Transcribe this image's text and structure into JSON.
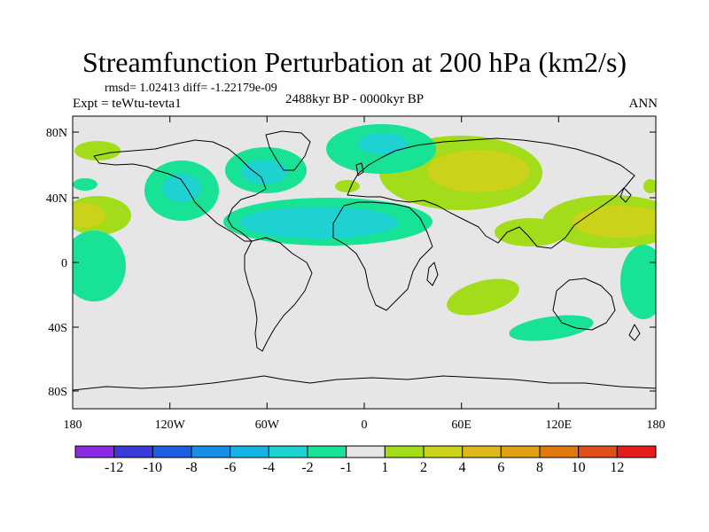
{
  "title": "Streamfunction Perturbation at 200 hPa (km2/s)",
  "stats": "rmsd= 1.02413  diff= -1.22179e-09",
  "experiment": "Expt = teWtu-tevta1",
  "period": "2488kyr BP - 0000kyr BP",
  "season": "ANN",
  "lat_ticks": [
    "80N",
    "40N",
    "0",
    "40S",
    "80S"
  ],
  "lon_ticks": [
    "180",
    "120W",
    "60W",
    "0",
    "60E",
    "120E",
    "180"
  ],
  "colorbar": {
    "labels": [
      "-12",
      "-10",
      "-8",
      "-6",
      "-4",
      "-2",
      "-1",
      "1",
      "2",
      "4",
      "6",
      "8",
      "10",
      "12"
    ],
    "colors": [
      "#8a2be2",
      "#3a3ad8",
      "#1e5fe0",
      "#1a8ee6",
      "#14b4e6",
      "#1fd2d2",
      "#18e296",
      "#e6e6e6",
      "#a2dc1a",
      "#cad21a",
      "#dcb81a",
      "#e0a014",
      "#e07a10",
      "#e0501a",
      "#e41c1c"
    ]
  },
  "colors": {
    "ocean_bg": "#e6e6e6",
    "coast": "#000000"
  }
}
